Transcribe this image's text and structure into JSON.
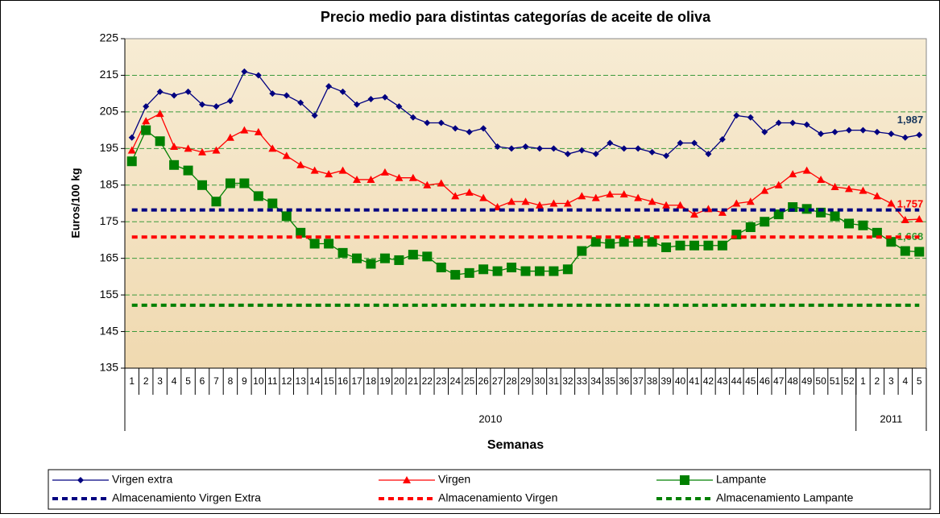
{
  "chart_data": {
    "type": "line",
    "title": "Precio medio para distintas categorías de aceite de oliva",
    "y_label": "Euros/100 kg",
    "x_label": "Semanas",
    "categories": [
      "1",
      "2",
      "3",
      "4",
      "5",
      "6",
      "7",
      "8",
      "9",
      "10",
      "11",
      "12",
      "13",
      "14",
      "15",
      "16",
      "17",
      "18",
      "19",
      "20",
      "21",
      "22",
      "23",
      "24",
      "25",
      "26",
      "27",
      "28",
      "29",
      "30",
      "31",
      "32",
      "33",
      "34",
      "35",
      "36",
      "37",
      "38",
      "39",
      "40",
      "41",
      "42",
      "43",
      "44",
      "45",
      "46",
      "47",
      "48",
      "49",
      "50",
      "51",
      "52",
      "1",
      "2",
      "3",
      "4",
      "5"
    ],
    "groups": [
      {
        "label": "2010",
        "count": 52
      },
      {
        "label": "2011",
        "count": 5
      }
    ],
    "ylim": [
      135,
      225
    ],
    "yticks": [
      135,
      145,
      155,
      165,
      175,
      185,
      195,
      205,
      215,
      225
    ],
    "grid": true,
    "legend": "bottom",
    "series": [
      {
        "name": "Virgen extra",
        "color": "#000080",
        "marker": "diamond",
        "values": [
          198,
          206.5,
          210.5,
          209.5,
          210.5,
          207,
          206.5,
          208,
          216,
          215,
          210,
          209.5,
          207.5,
          204,
          212,
          210.5,
          207,
          208.5,
          209,
          206.5,
          203.5,
          202,
          202,
          200.5,
          199.5,
          200.5,
          195.5,
          195,
          195.5,
          195,
          195,
          193.5,
          194.5,
          193.5,
          196.5,
          195,
          195,
          194,
          193,
          196.5,
          196.5,
          193.5,
          197.5,
          204,
          203.5,
          199.5,
          202,
          202,
          201.5,
          199,
          199.5,
          200,
          200,
          199.5,
          199,
          198,
          198.7
        ],
        "value_labels": [
          null,
          null,
          null,
          null,
          null,
          null,
          null,
          null,
          null,
          null,
          null,
          null,
          null,
          null,
          null,
          null,
          null,
          null,
          null,
          null,
          null,
          null,
          null,
          null,
          null,
          null,
          null,
          null,
          null,
          null,
          null,
          null,
          null,
          null,
          null,
          null,
          null,
          null,
          null,
          null,
          null,
          null,
          null,
          null,
          null,
          null,
          null,
          null,
          null,
          null,
          null,
          null,
          null,
          null,
          null,
          null,
          "1,987"
        ],
        "label_color": "#17365d"
      },
      {
        "name": "Virgen",
        "color": "#ff0000",
        "marker": "triangle",
        "values": [
          194.5,
          202.5,
          204.5,
          195.5,
          195,
          194,
          194.5,
          198,
          200,
          199.5,
          195,
          193,
          190.5,
          189,
          188,
          189,
          186.5,
          186.5,
          188.5,
          187,
          187,
          185,
          185.5,
          182,
          183,
          181.5,
          179,
          180.5,
          180.5,
          179.5,
          180,
          180,
          182,
          181.5,
          182.5,
          182.5,
          181.5,
          180.5,
          179.5,
          179.5,
          177,
          178.5,
          177.5,
          180,
          180.5,
          183.5,
          185,
          188,
          189,
          186.5,
          184.5,
          184,
          183.5,
          182,
          180,
          175.5,
          175.7
        ],
        "value_labels": [
          null,
          null,
          null,
          null,
          null,
          null,
          null,
          null,
          null,
          null,
          null,
          null,
          null,
          null,
          null,
          null,
          null,
          null,
          null,
          null,
          null,
          null,
          null,
          null,
          null,
          null,
          null,
          null,
          null,
          null,
          null,
          null,
          null,
          null,
          null,
          null,
          null,
          null,
          null,
          null,
          null,
          null,
          null,
          null,
          null,
          null,
          null,
          null,
          null,
          null,
          null,
          null,
          null,
          null,
          null,
          null,
          "1,757"
        ],
        "label_color": "#ff0000"
      },
      {
        "name": "Lampante",
        "color": "#008000",
        "marker": "square",
        "values": [
          191.5,
          200,
          197,
          190.5,
          189,
          185,
          180.5,
          185.5,
          185.5,
          182,
          180,
          176.5,
          172,
          169,
          169,
          166.5,
          165,
          163.5,
          165,
          164.5,
          166,
          165.5,
          162.5,
          160.5,
          161,
          162,
          161.5,
          162.5,
          161.5,
          161.5,
          161.5,
          162,
          167,
          169.5,
          169,
          169.5,
          169.5,
          169.5,
          168,
          168.5,
          168.5,
          168.5,
          168.5,
          171.5,
          173.5,
          175,
          177,
          179,
          178.5,
          177.5,
          176.5,
          174.5,
          174,
          172,
          169.5,
          167,
          166.8
        ],
        "value_labels": [
          null,
          null,
          null,
          null,
          null,
          null,
          null,
          null,
          null,
          null,
          null,
          null,
          null,
          null,
          null,
          null,
          null,
          null,
          null,
          null,
          null,
          null,
          null,
          null,
          null,
          null,
          null,
          null,
          null,
          null,
          null,
          null,
          null,
          null,
          null,
          null,
          null,
          null,
          null,
          null,
          null,
          null,
          null,
          null,
          null,
          null,
          null,
          null,
          null,
          null,
          null,
          null,
          null,
          null,
          null,
          null,
          "1,668"
        ],
        "label_color": "#339933"
      },
      {
        "name": "Almacenamiento Virgen Extra",
        "color": "#000080",
        "dash": true,
        "values": [
          178.2,
          178.2,
          178.2,
          178.2,
          178.2,
          178.2,
          178.2,
          178.2,
          178.2,
          178.2,
          178.2,
          178.2,
          178.2,
          178.2,
          178.2,
          178.2,
          178.2,
          178.2,
          178.2,
          178.2,
          178.2,
          178.2,
          178.2,
          178.2,
          178.2,
          178.2,
          178.2,
          178.2,
          178.2,
          178.2,
          178.2,
          178.2,
          178.2,
          178.2,
          178.2,
          178.2,
          178.2,
          178.2,
          178.2,
          178.2,
          178.2,
          178.2,
          178.2,
          178.2,
          178.2,
          178.2,
          178.2,
          178.2,
          178.2,
          178.2,
          178.2,
          178.2,
          178.2,
          178.2,
          178.2,
          178.2,
          178.2
        ]
      },
      {
        "name": "Almacenamiento Virgen",
        "color": "#ff0000",
        "dash": true,
        "values": [
          170.8,
          170.8,
          170.8,
          170.8,
          170.8,
          170.8,
          170.8,
          170.8,
          170.8,
          170.8,
          170.8,
          170.8,
          170.8,
          170.8,
          170.8,
          170.8,
          170.8,
          170.8,
          170.8,
          170.8,
          170.8,
          170.8,
          170.8,
          170.8,
          170.8,
          170.8,
          170.8,
          170.8,
          170.8,
          170.8,
          170.8,
          170.8,
          170.8,
          170.8,
          170.8,
          170.8,
          170.8,
          170.8,
          170.8,
          170.8,
          170.8,
          170.8,
          170.8,
          170.8,
          170.8,
          170.8,
          170.8,
          170.8,
          170.8,
          170.8,
          170.8,
          170.8,
          170.8,
          170.8,
          170.8,
          170.8,
          170.8
        ]
      },
      {
        "name": "Almacenamiento Lampante",
        "color": "#008000",
        "dash": true,
        "values": [
          152.2,
          152.2,
          152.2,
          152.2,
          152.2,
          152.2,
          152.2,
          152.2,
          152.2,
          152.2,
          152.2,
          152.2,
          152.2,
          152.2,
          152.2,
          152.2,
          152.2,
          152.2,
          152.2,
          152.2,
          152.2,
          152.2,
          152.2,
          152.2,
          152.2,
          152.2,
          152.2,
          152.2,
          152.2,
          152.2,
          152.2,
          152.2,
          152.2,
          152.2,
          152.2,
          152.2,
          152.2,
          152.2,
          152.2,
          152.2,
          152.2,
          152.2,
          152.2,
          152.2,
          152.2,
          152.2,
          152.2,
          152.2,
          152.2,
          152.2,
          152.2,
          152.2,
          152.2,
          152.2,
          152.2,
          152.2,
          152.2
        ]
      }
    ]
  }
}
